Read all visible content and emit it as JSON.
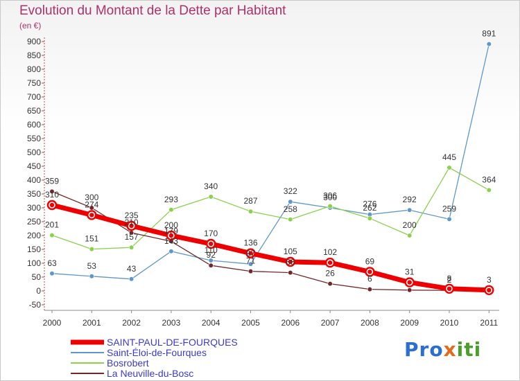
{
  "title": "Evolution du Montant de la Dette par Habitant",
  "unit_label": "(en €)",
  "logo": {
    "text": "Proxiti",
    "letters": [
      "Pro",
      "x",
      "iti"
    ]
  },
  "chart_data": {
    "type": "line",
    "categories": [
      "2000",
      "2001",
      "2002",
      "2003",
      "2004",
      "2005",
      "2006",
      "2007",
      "2008",
      "2009",
      "2010",
      "2011"
    ],
    "y_ticks": [
      "-50",
      "0",
      "50",
      "100",
      "150",
      "200",
      "250",
      "300",
      "350",
      "400",
      "450",
      "500",
      "550",
      "600",
      "650",
      "700",
      "750",
      "800",
      "850",
      "900"
    ],
    "ylim": [
      -50,
      900
    ],
    "grid": false,
    "legend_position": "bottom-left",
    "series": [
      {
        "name": "Saint-Éloi-de-Fourques",
        "color": "#5f97c9",
        "width": 1.3,
        "marker": 3.3,
        "values": [
          63,
          53,
          43,
          143,
          110,
          97,
          322,
          300,
          276,
          292,
          259,
          891
        ],
        "labels": [
          "63",
          "53",
          "43",
          "143",
          "110",
          "97",
          "322",
          "300",
          "276",
          "292",
          "259",
          "891"
        ]
      },
      {
        "name": "Bosrobert",
        "color": "#8ad14c",
        "width": 1.3,
        "marker": 3.3,
        "values": [
          201,
          151,
          157,
          293,
          340,
          287,
          258,
          306,
          262,
          200,
          445,
          364
        ],
        "labels": [
          "201",
          "151",
          "157",
          "293",
          "340",
          "287",
          "258",
          "306",
          "262",
          "200",
          "445",
          "364"
        ]
      },
      {
        "name": "La Neuville-du-Bosc",
        "color": "#722828",
        "width": 1.3,
        "marker": 3.3,
        "values": [
          359,
          300,
          210,
          179,
          92,
          71,
          66,
          26,
          6,
          3,
          2,
          3
        ],
        "labels": [
          "359",
          "300",
          "210",
          "179",
          "92",
          "71",
          "66",
          "26",
          "6",
          "",
          "2",
          ""
        ]
      },
      {
        "name": "SAINT-PAUL-DE-FOURQUES",
        "color": "#ee0000",
        "width": 7,
        "marker": 6,
        "values": [
          310,
          274,
          235,
          200,
          170,
          136,
          105,
          102,
          69,
          31,
          8,
          3
        ],
        "labels": [
          "310",
          "274",
          "235",
          "200",
          "170",
          "136",
          "105",
          "102",
          "69",
          "31",
          "8",
          "3"
        ]
      }
    ],
    "legend_order": [
      "SAINT-PAUL-DE-FOURQUES",
      "Saint-Éloi-de-Fourques",
      "Bosrobert",
      "La Neuville-du-Bosc"
    ]
  }
}
